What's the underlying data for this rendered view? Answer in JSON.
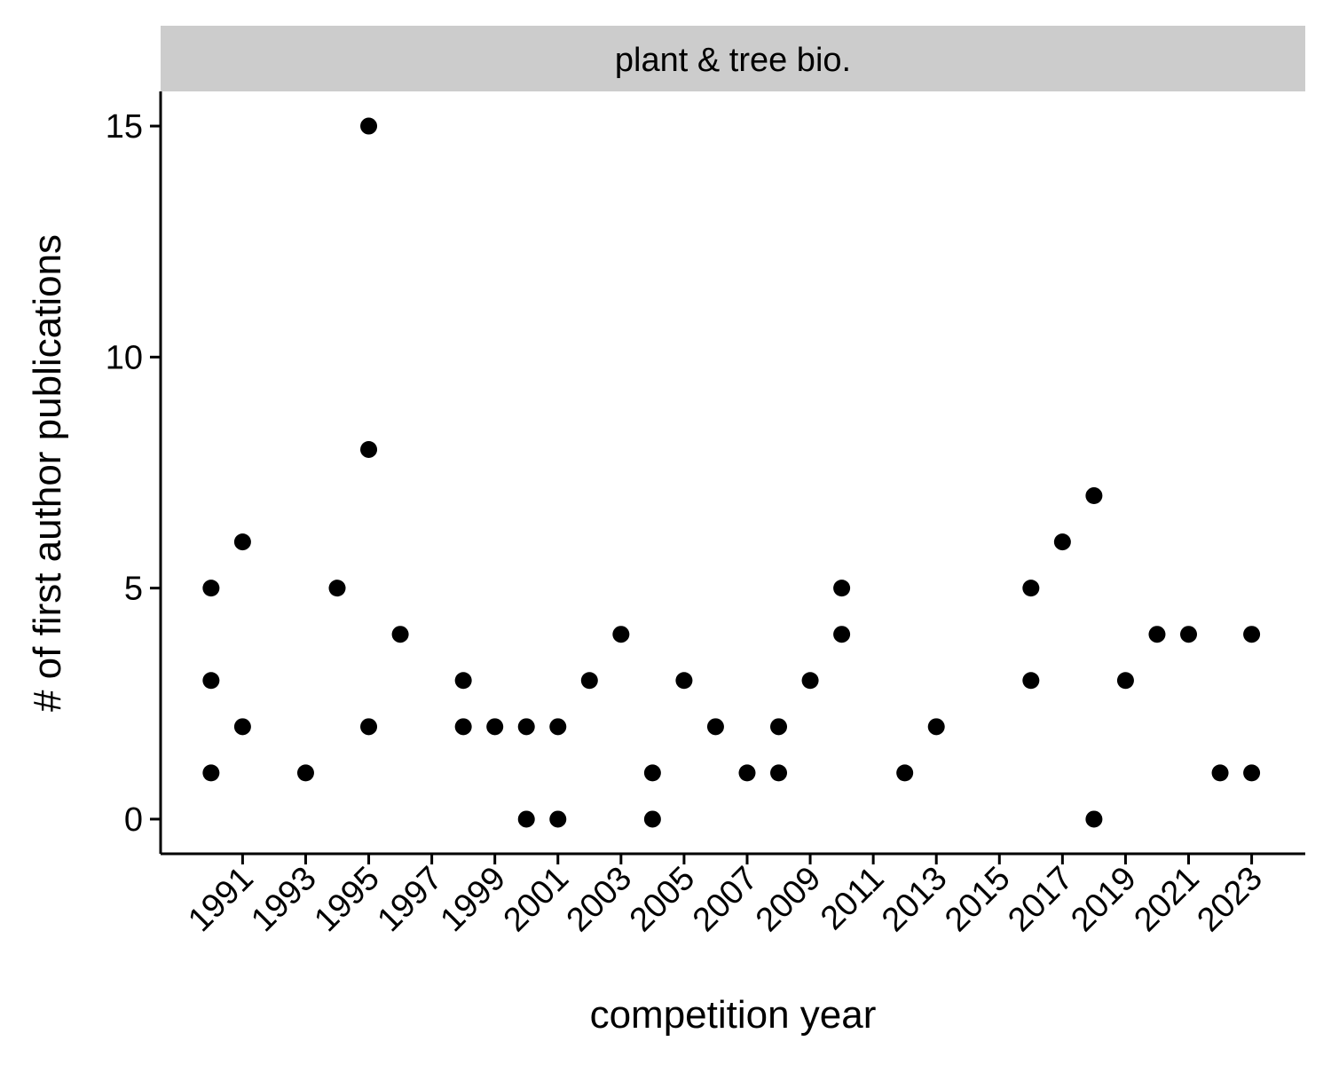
{
  "chart_data": {
    "type": "scatter",
    "facet_label": "plant & tree bio.",
    "xlabel": "competition year",
    "ylabel": "# of first author publications",
    "x_ticks": [
      1991,
      1993,
      1995,
      1997,
      1999,
      2001,
      2003,
      2005,
      2007,
      2009,
      2011,
      2013,
      2015,
      2017,
      2019,
      2021,
      2023
    ],
    "y_ticks": [
      0,
      5,
      10,
      15
    ],
    "xlim": [
      1988.4,
      2024.7
    ],
    "ylim": [
      -0.75,
      15.75
    ],
    "grid": false,
    "legend": "none",
    "point_color": "#000000",
    "strip_color": "#cccccc",
    "points": [
      {
        "x": 1990,
        "y": 5
      },
      {
        "x": 1990,
        "y": 3
      },
      {
        "x": 1990,
        "y": 1
      },
      {
        "x": 1991,
        "y": 6
      },
      {
        "x": 1991,
        "y": 2
      },
      {
        "x": 1993,
        "y": 1
      },
      {
        "x": 1994,
        "y": 5
      },
      {
        "x": 1995,
        "y": 15
      },
      {
        "x": 1995,
        "y": 8
      },
      {
        "x": 1995,
        "y": 2
      },
      {
        "x": 1996,
        "y": 4
      },
      {
        "x": 1998,
        "y": 3
      },
      {
        "x": 1998,
        "y": 2
      },
      {
        "x": 1999,
        "y": 2
      },
      {
        "x": 2000,
        "y": 2
      },
      {
        "x": 2000,
        "y": 0
      },
      {
        "x": 2001,
        "y": 2
      },
      {
        "x": 2001,
        "y": 0
      },
      {
        "x": 2002,
        "y": 3
      },
      {
        "x": 2003,
        "y": 4
      },
      {
        "x": 2004,
        "y": 1
      },
      {
        "x": 2004,
        "y": 0
      },
      {
        "x": 2005,
        "y": 3
      },
      {
        "x": 2006,
        "y": 2
      },
      {
        "x": 2007,
        "y": 1
      },
      {
        "x": 2008,
        "y": 2
      },
      {
        "x": 2008,
        "y": 1
      },
      {
        "x": 2009,
        "y": 3
      },
      {
        "x": 2010,
        "y": 5
      },
      {
        "x": 2010,
        "y": 4
      },
      {
        "x": 2012,
        "y": 1
      },
      {
        "x": 2013,
        "y": 2
      },
      {
        "x": 2016,
        "y": 5
      },
      {
        "x": 2016,
        "y": 3
      },
      {
        "x": 2017,
        "y": 6
      },
      {
        "x": 2018,
        "y": 7
      },
      {
        "x": 2018,
        "y": 0
      },
      {
        "x": 2019,
        "y": 3
      },
      {
        "x": 2020,
        "y": 4
      },
      {
        "x": 2021,
        "y": 4
      },
      {
        "x": 2022,
        "y": 1
      },
      {
        "x": 2023,
        "y": 4
      },
      {
        "x": 2023,
        "y": 1
      }
    ]
  }
}
